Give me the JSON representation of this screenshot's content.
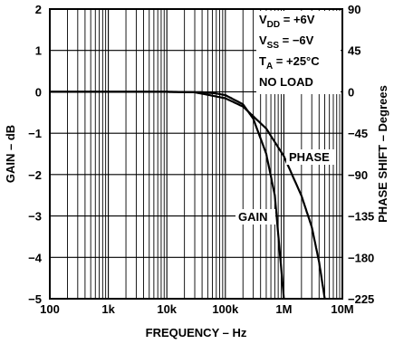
{
  "chart_data": {
    "type": "line",
    "xlabel": "FREQUENCY – Hz",
    "ylabel": "GAIN – dB",
    "y2label": "PHASE SHIFT – Degrees",
    "x_scale": "log",
    "xlim": [
      100,
      10000000
    ],
    "ylim": [
      -5,
      2
    ],
    "y2lim": [
      -225,
      90
    ],
    "x_ticks": [
      "100",
      "1k",
      "10k",
      "100k",
      "1M",
      "10M"
    ],
    "y_ticks": [
      "2",
      "1",
      "0",
      "−1",
      "−2",
      "−3",
      "−4",
      "−5"
    ],
    "y2_ticks": [
      "90",
      "45",
      "0",
      "−45",
      "−90",
      "−135",
      "−180",
      "−225"
    ],
    "grid": true,
    "conditions": [
      {
        "main": "V",
        "sub": "DD",
        "rest": " = +6V"
      },
      {
        "main": "V",
        "sub": "SS",
        "rest": " = −6V"
      },
      {
        "main": "T",
        "sub": "A",
        "rest": " = +25°C"
      },
      {
        "main": "NO LOAD",
        "sub": "",
        "rest": ""
      }
    ],
    "series": [
      {
        "name": "GAIN",
        "axis": "left",
        "x": [
          100,
          1000,
          10000,
          40000,
          70000,
          100000,
          200000,
          300000,
          500000,
          700000,
          1000000
        ],
        "y": [
          0,
          0,
          0,
          -0.01,
          -0.04,
          -0.08,
          -0.3,
          -0.65,
          -1.5,
          -2.5,
          -5
        ]
      },
      {
        "name": "PHASE",
        "axis": "right",
        "x": [
          100,
          1000,
          10000,
          30000,
          100000,
          200000,
          500000,
          1000000,
          2000000,
          3000000,
          4000000,
          5000000
        ],
        "y": [
          0,
          0,
          0,
          -0.5,
          -7,
          -16,
          -40,
          -70,
          -113,
          -147,
          -185,
          -225
        ]
      }
    ]
  }
}
